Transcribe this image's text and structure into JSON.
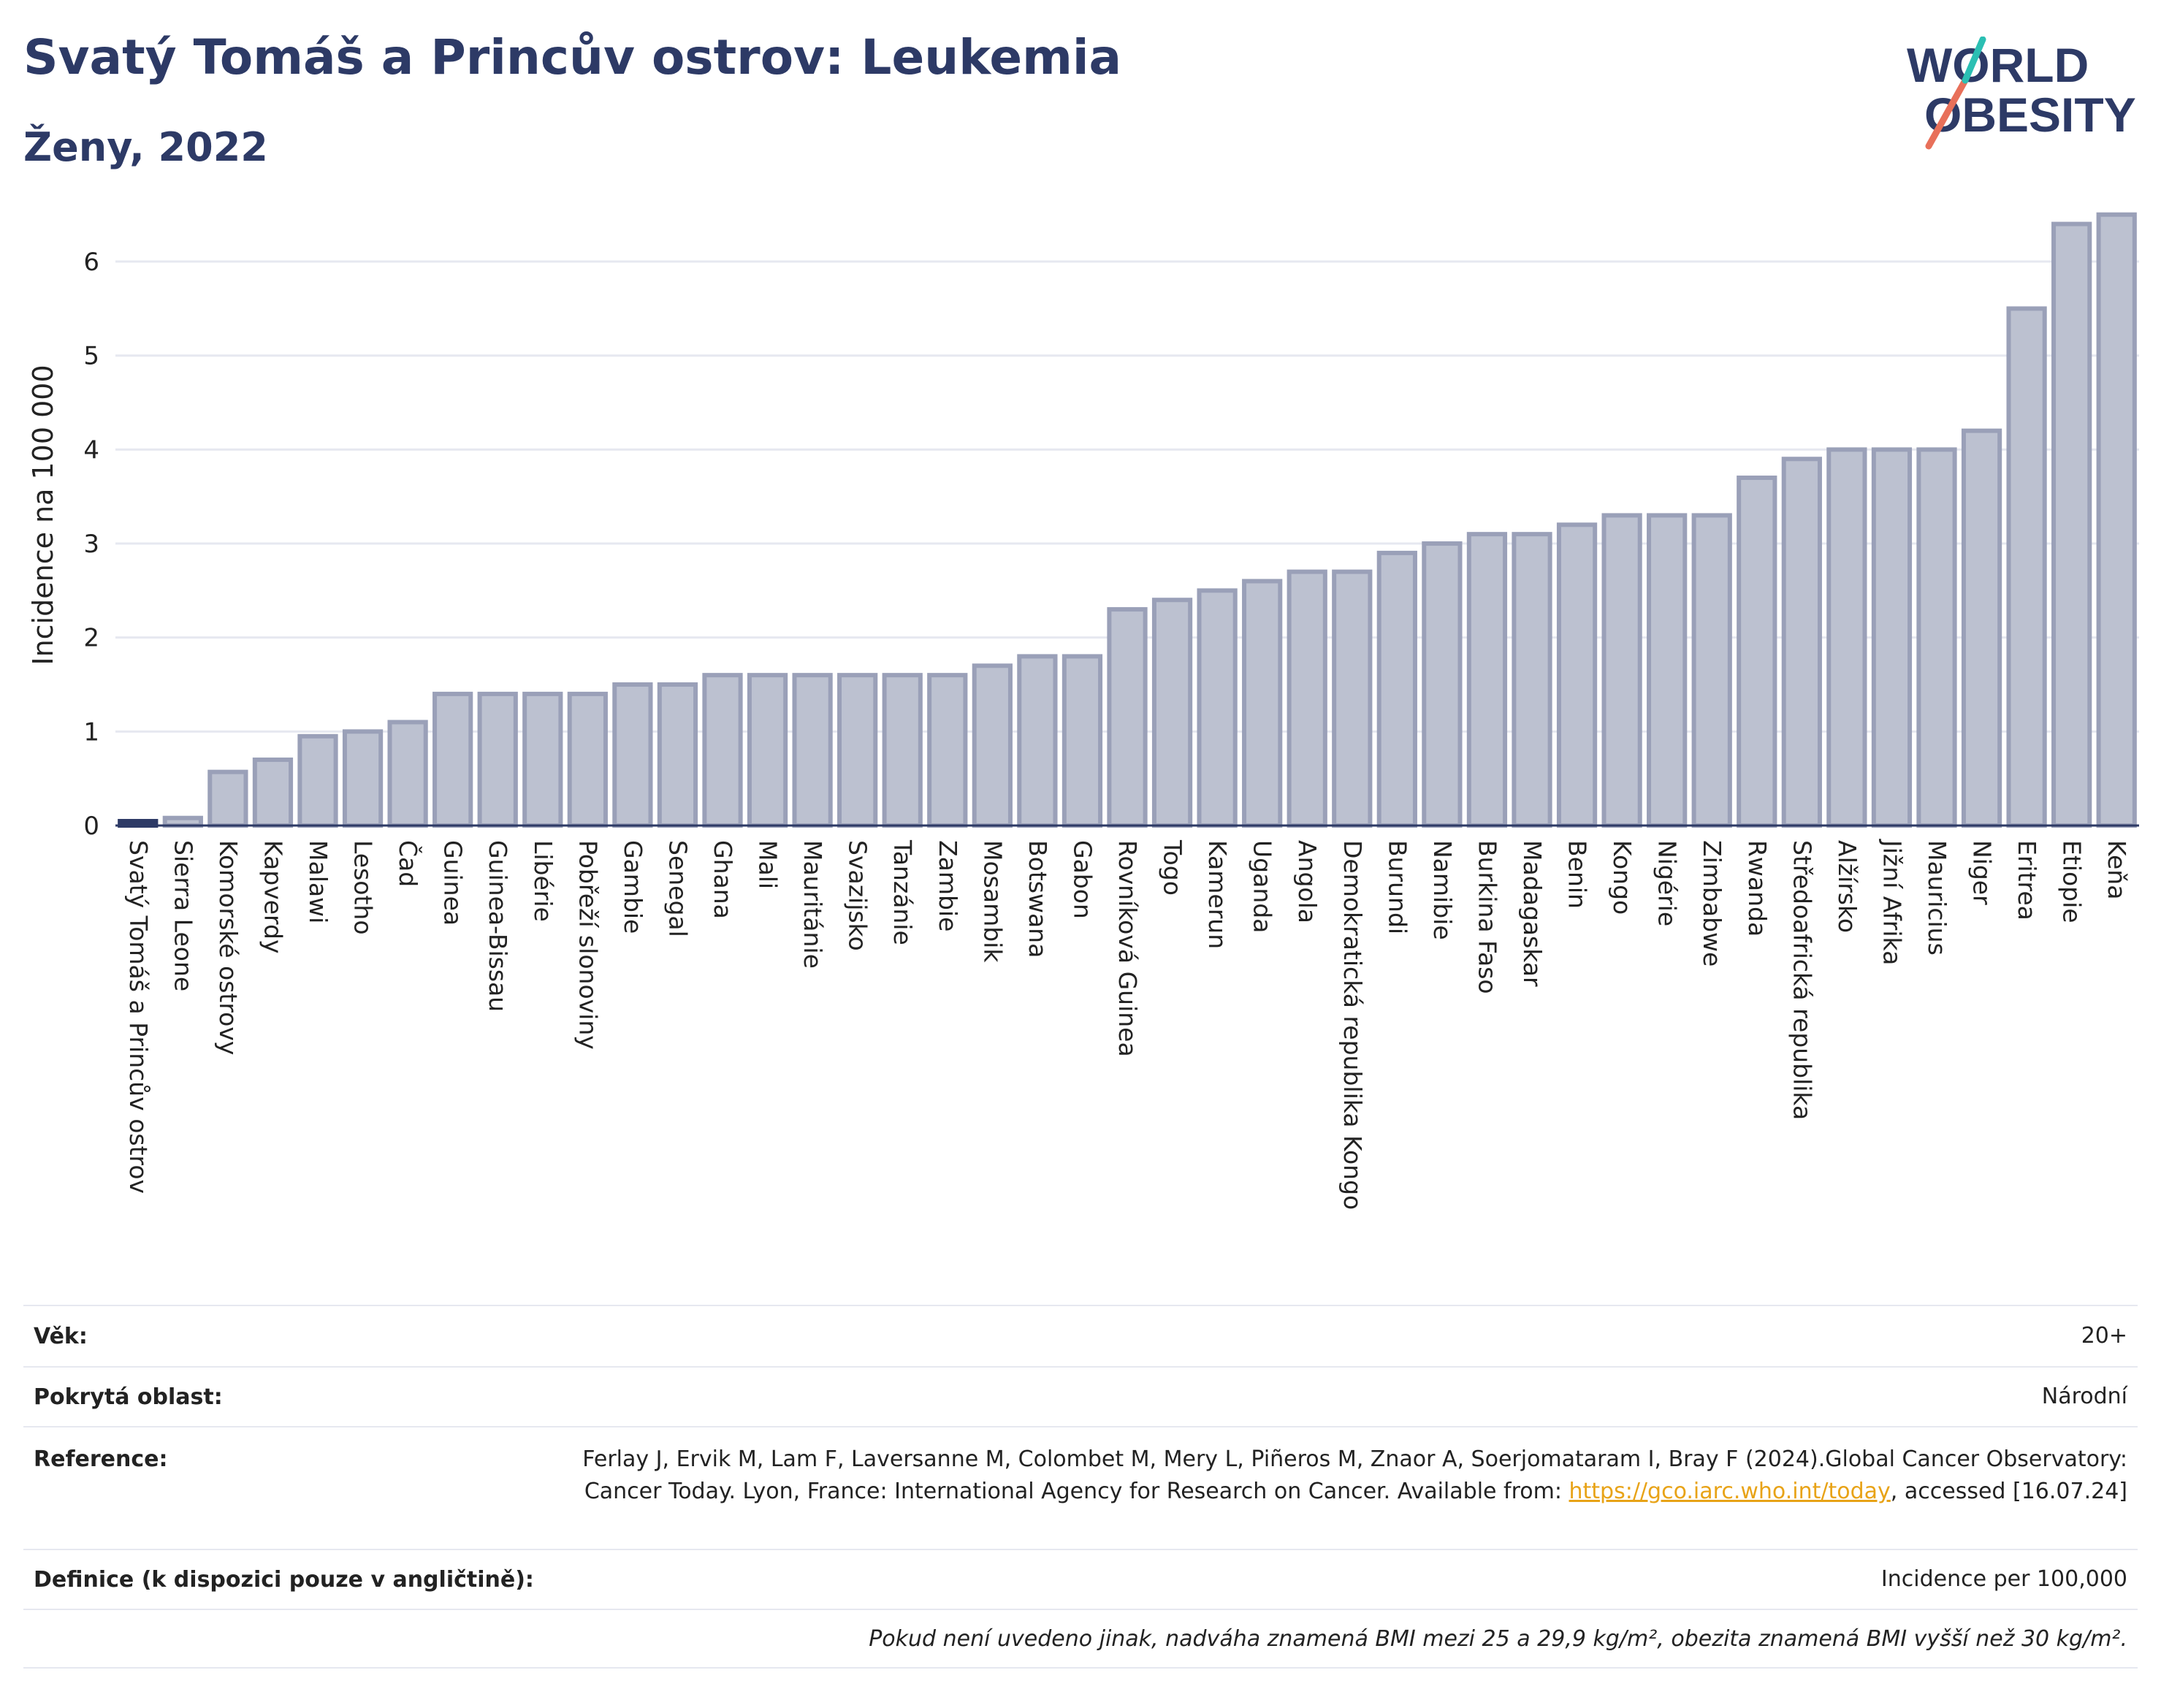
{
  "header": {
    "title": "Svatý Tomáš a Princův ostrov: Leukemia",
    "subtitle": "Ženy, 2022"
  },
  "logo": {
    "line1": "WORLD",
    "line2": "OBESITY"
  },
  "colors": {
    "bar_fill": "#bcc1d0",
    "bar_stroke": "#9aa0b8",
    "highlight": "#2d3a66",
    "title": "#2d3a66"
  },
  "chart_data": {
    "type": "bar",
    "ylabel": "Incidence na 100 000",
    "ylim": [
      0,
      6.7
    ],
    "yticks": [
      0,
      1,
      2,
      3,
      4,
      5,
      6
    ],
    "grid": true,
    "highlight": "Svatý Tomáš a Princův ostrov",
    "categories": [
      "Svatý Tomáš a Princův ostrov",
      "Sierra Leone",
      "Komorské ostrovy",
      "Kapverdy",
      "Malawi",
      "Lesotho",
      "Čad",
      "Guinea",
      "Guinea-Bissau",
      "Libérie",
      "Pobřeží slonoviny",
      "Gambie",
      "Senegal",
      "Ghana",
      "Mali",
      "Mauritánie",
      "Svazijsko",
      "Tanzánie",
      "Zambie",
      "Mosambik",
      "Botswana",
      "Gabon",
      "Rovníková Guinea",
      "Togo",
      "Kamerun",
      "Uganda",
      "Angola",
      "Demokratická republika Kongo",
      "Burundi",
      "Namibie",
      "Burkina Faso",
      "Madagaskar",
      "Benin",
      "Kongo",
      "Nigérie",
      "Zimbabwe",
      "Rwanda",
      "Středoafrická republika",
      "Alžírsko",
      "Jižní Afrika",
      "Mauricius",
      "Niger",
      "Eritrea",
      "Etiopie",
      "Keňa"
    ],
    "values": [
      0.0,
      0.08,
      0.57,
      0.7,
      0.95,
      1.0,
      1.1,
      1.4,
      1.4,
      1.4,
      1.4,
      1.5,
      1.5,
      1.6,
      1.6,
      1.6,
      1.6,
      1.6,
      1.6,
      1.7,
      1.8,
      1.8,
      2.3,
      2.4,
      2.5,
      2.6,
      2.7,
      2.7,
      2.9,
      3.0,
      3.1,
      3.1,
      3.2,
      3.3,
      3.3,
      3.3,
      3.7,
      3.9,
      4.0,
      4.0,
      4.0,
      4.2,
      5.5,
      6.4,
      6.5
    ]
  },
  "info": {
    "age_label": "Věk:",
    "age_value": "20+",
    "coverage_label": "Pokrytá oblast:",
    "coverage_value": "Národní",
    "reference_label": "Reference:",
    "reference_text": "Ferlay J, Ervik M, Lam F, Laversanne M, Colombet M, Mery L, Piñeros M, Znaor A, Soerjomataram I, Bray F (2024).Global Cancer Observatory: Cancer Today. Lyon, France: International Agency for Research on Cancer. Available from:",
    "reference_link": "https://gco.iarc.who.int/today",
    "reference_suffix": ", accessed [16.07.24]",
    "definition_label": "Definice (k dispozici pouze v angličtině):",
    "definition_value": "Incidence per 100,000",
    "note": "Pokud není uvedeno jinak, nadváha znamená BMI mezi 25 a 29,9 kg/m², obezita znamená BMI vyšší než 30 kg/m²."
  }
}
